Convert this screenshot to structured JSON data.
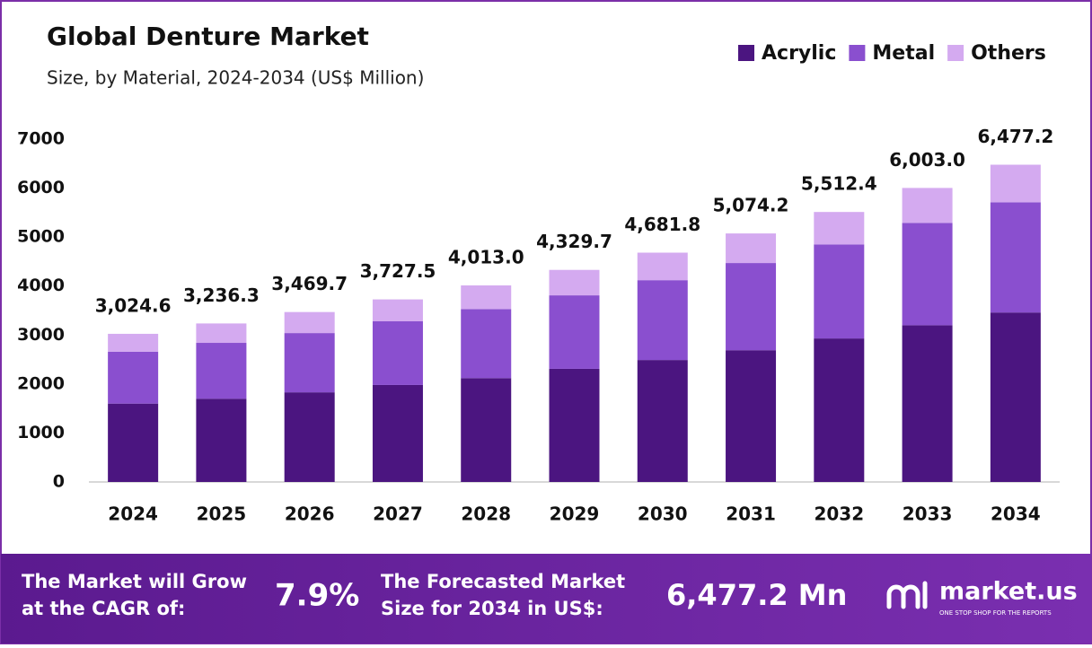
{
  "chart_data": {
    "type": "stacked_bar",
    "title": "Global Denture Market",
    "subtitle": "Size, by Material, 2024-2034 (US$ Million)",
    "categories": [
      "2024",
      "2025",
      "2026",
      "2027",
      "2028",
      "2029",
      "2030",
      "2031",
      "2032",
      "2033",
      "2034"
    ],
    "series": [
      {
        "name": "Acrylic",
        "color": "#4b1580",
        "values": [
          1600,
          1700,
          1830,
          1980,
          2120,
          2310,
          2490,
          2690,
          2930,
          3200,
          3460
        ]
      },
      {
        "name": "Metal",
        "color": "#8a4fcf",
        "values": [
          1060,
          1140,
          1210,
          1300,
          1410,
          1500,
          1630,
          1780,
          1920,
          2090,
          2250
        ]
      },
      {
        "name": "Others",
        "color": "#d4aaf0",
        "values": [
          364.6,
          396.3,
          429.7,
          447.5,
          483,
          519.7,
          561.8,
          604.2,
          662.4,
          713,
          767.2
        ]
      }
    ],
    "totals": [
      3024.6,
      3236.3,
      3469.7,
      3727.5,
      4013.0,
      4329.7,
      4681.8,
      5074.2,
      5512.4,
      6003.0,
      6477.2
    ],
    "total_labels": [
      "3,024.6",
      "3,236.3",
      "3,469.7",
      "3,727.5",
      "4,013.0",
      "4,329.7",
      "4,681.8",
      "5,074.2",
      "5,512.4",
      "6,003.0",
      "6,477.2"
    ],
    "ylim": [
      0,
      7000
    ],
    "yticks": [
      0,
      1000,
      2000,
      3000,
      4000,
      5000,
      6000,
      7000
    ],
    "grid": false,
    "legend": "top-right"
  },
  "footer": {
    "cagr_text": [
      "The Market will Grow",
      "at the CAGR of:"
    ],
    "cagr_value": "7.9%",
    "forecast_text": [
      "The Forecasted Market",
      "Size for 2034 in US$:"
    ],
    "forecast_value": "6,477.2 Mn",
    "brand": "market.us",
    "tagline": "ONE STOP SHOP FOR THE REPORTS"
  }
}
